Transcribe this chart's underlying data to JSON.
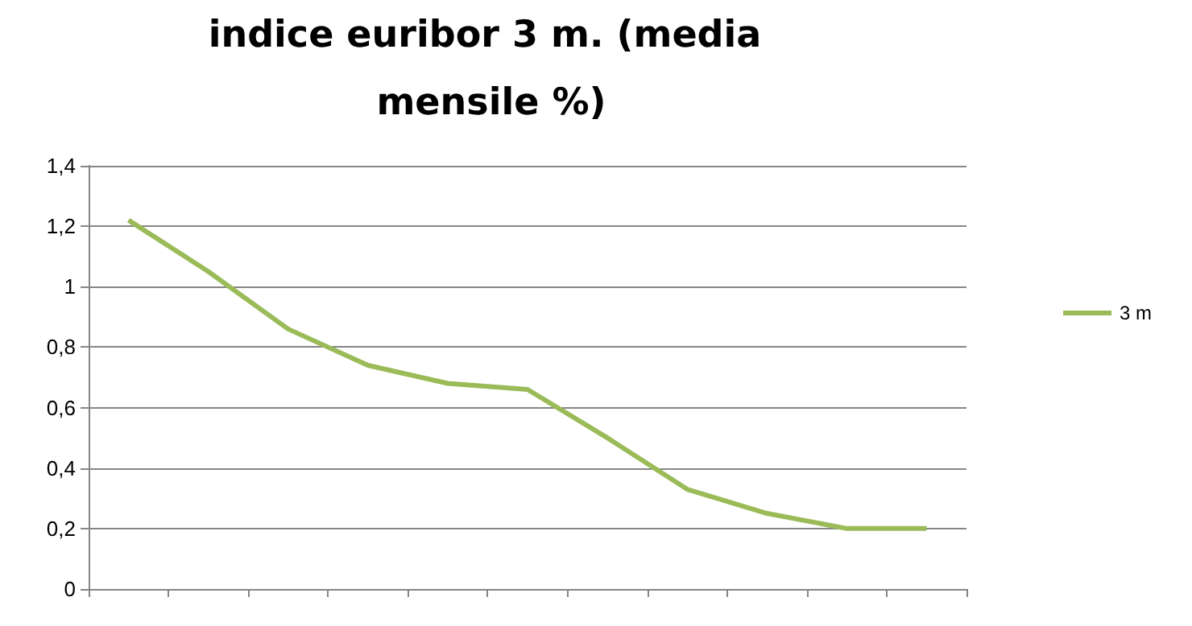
{
  "chart_data": {
    "type": "line",
    "title": "indice euribor 3 m. (media mensile %)",
    "categories": [
      null,
      null,
      null,
      null,
      null,
      null,
      null,
      null,
      null,
      null,
      null
    ],
    "series": [
      {
        "name": "3 m",
        "color": "#9bbb59",
        "values": [
          1.22,
          1.05,
          0.86,
          0.74,
          0.68,
          0.66,
          0.5,
          0.33,
          0.25,
          0.2,
          0.2
        ]
      }
    ],
    "ylim": [
      0,
      1.4
    ],
    "yticks": [
      0,
      {
        "value": 0.2,
        "label": "0,2"
      },
      {
        "value": 0.4,
        "label": "0,4"
      },
      {
        "value": 0.6,
        "label": "0,6"
      },
      {
        "value": 0.8,
        "label": "0,8"
      },
      1,
      {
        "value": 1.2,
        "label": "1,2"
      },
      {
        "value": 1.4,
        "label": "1,4"
      }
    ],
    "grid": "y",
    "legend": "right",
    "marker": "none",
    "line_style": "solid"
  }
}
